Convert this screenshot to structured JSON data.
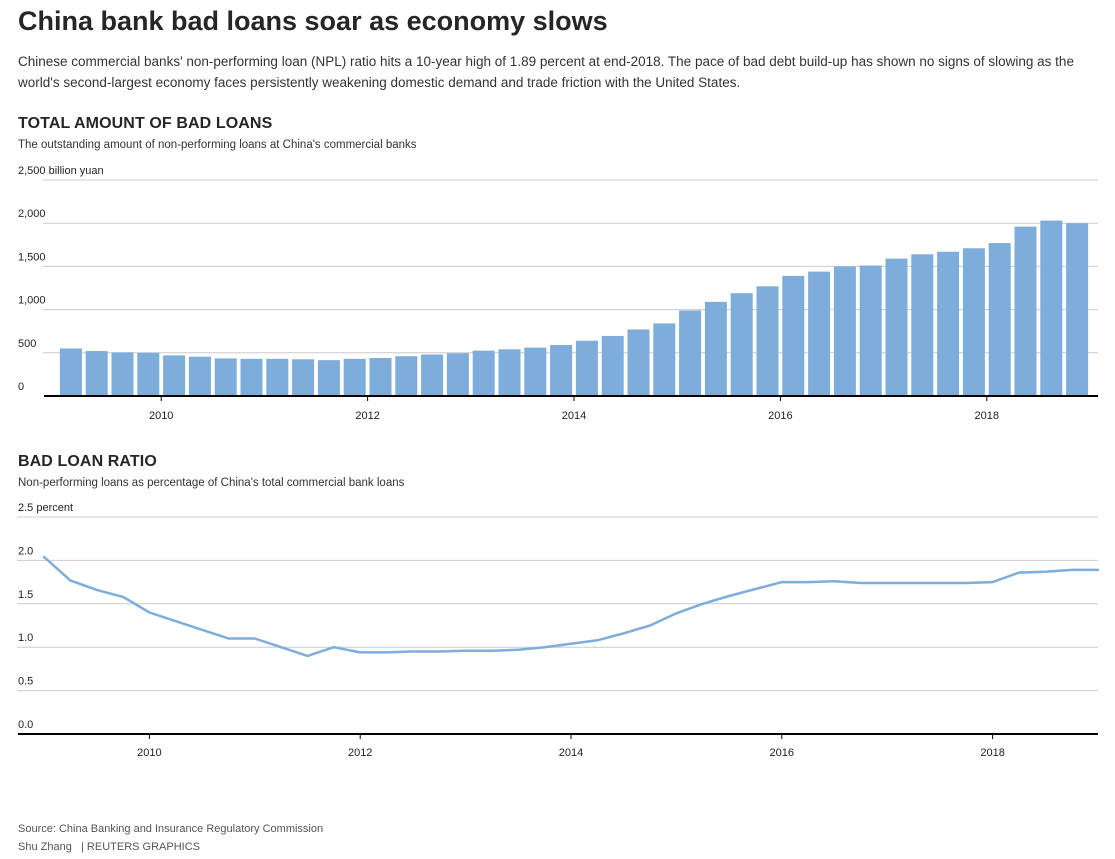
{
  "headline": "China bank bad loans soar as economy slows",
  "dek": "Chinese commercial banks' non-performing loan (NPL) ratio hits a 10-year high of 1.89 percent at end-2018. The pace of bad debt build-up has shown no signs of slowing as the world's second-largest economy faces persistently weakening domestic demand and trade friction with the United States.",
  "bar_section": {
    "title": "TOTAL AMOUNT OF BAD LOANS",
    "subtitle": "The outstanding amount of non-performing loans at China's commercial banks"
  },
  "line_section": {
    "title": "BAD LOAN RATIO",
    "subtitle": "Non-performing loans as percentage of China's total commercial bank loans"
  },
  "footer": {
    "source": "Source: China Banking and Insurance Regulatory Commission",
    "author": "Shu Zhang",
    "credit": "| REUTERS GRAPHICS"
  },
  "colors": {
    "series": "#7eaddb",
    "grid": "#cccccc",
    "axis": "#000000"
  },
  "chart_data": [
    {
      "type": "bar",
      "title": "TOTAL AMOUNT OF BAD LOANS",
      "ylabel": "billion yuan",
      "ylim": [
        0,
        2500
      ],
      "yticks": [
        "0",
        "500",
        "1,000",
        "1,500",
        "2,000",
        "2,500 billion yuan"
      ],
      "ytick_values": [
        0,
        500,
        1000,
        1500,
        2000,
        2500
      ],
      "xticks": [
        "2010",
        "2012",
        "2014",
        "2016",
        "2018"
      ],
      "xtick_values": [
        2010,
        2012,
        2014,
        2016,
        2018
      ],
      "xlim": [
        2009.0,
        2019.0
      ],
      "grid": true,
      "x": [
        2009.125,
        2009.375,
        2009.625,
        2009.875,
        2010.125,
        2010.375,
        2010.625,
        2010.875,
        2011.125,
        2011.375,
        2011.625,
        2011.875,
        2012.125,
        2012.375,
        2012.625,
        2012.875,
        2013.125,
        2013.375,
        2013.625,
        2013.875,
        2014.125,
        2014.375,
        2014.625,
        2014.875,
        2015.125,
        2015.375,
        2015.625,
        2015.875,
        2016.125,
        2016.375,
        2016.625,
        2016.875,
        2017.125,
        2017.375,
        2017.625,
        2017.875,
        2018.125,
        2018.375,
        2018.625,
        2018.875
      ],
      "values": [
        550,
        520,
        505,
        500,
        470,
        455,
        435,
        430,
        430,
        425,
        415,
        430,
        440,
        460,
        480,
        495,
        525,
        540,
        560,
        590,
        640,
        695,
        770,
        840,
        990,
        1090,
        1190,
        1270,
        1390,
        1440,
        1500,
        1510,
        1590,
        1640,
        1670,
        1710,
        1770,
        1960,
        2030,
        2000
      ]
    },
    {
      "type": "line",
      "title": "BAD LOAN RATIO",
      "ylabel": "percent",
      "ylim": [
        0,
        2.5
      ],
      "yticks": [
        "0.0",
        "0.5",
        "1.0",
        "1.5",
        "2.0",
        "2.5 percent"
      ],
      "ytick_values": [
        0,
        0.5,
        1.0,
        1.5,
        2.0,
        2.5
      ],
      "xticks": [
        "2010",
        "2012",
        "2014",
        "2016",
        "2018"
      ],
      "xtick_values": [
        2010,
        2012,
        2014,
        2016,
        2018
      ],
      "xlim": [
        2009.0,
        2019.0
      ],
      "grid": true,
      "x": [
        2009.0,
        2009.25,
        2009.5,
        2009.75,
        2010.0,
        2010.25,
        2010.5,
        2010.75,
        2011.0,
        2011.25,
        2011.5,
        2011.75,
        2012.0,
        2012.25,
        2012.5,
        2012.75,
        2013.0,
        2013.25,
        2013.5,
        2013.75,
        2014.0,
        2014.25,
        2014.5,
        2014.75,
        2015.0,
        2015.25,
        2015.5,
        2015.75,
        2016.0,
        2016.25,
        2016.5,
        2016.75,
        2017.0,
        2017.25,
        2017.5,
        2017.75,
        2018.0,
        2018.25,
        2018.5,
        2018.75,
        2019.0
      ],
      "values": [
        2.04,
        1.77,
        1.66,
        1.58,
        1.4,
        1.3,
        1.2,
        1.1,
        1.1,
        1.0,
        0.9,
        1.0,
        0.94,
        0.94,
        0.95,
        0.95,
        0.96,
        0.96,
        0.97,
        1.0,
        1.04,
        1.08,
        1.16,
        1.25,
        1.39,
        1.5,
        1.59,
        1.67,
        1.75,
        1.75,
        1.76,
        1.74,
        1.74,
        1.74,
        1.74,
        1.74,
        1.75,
        1.86,
        1.87,
        1.89,
        1.89
      ]
    }
  ]
}
